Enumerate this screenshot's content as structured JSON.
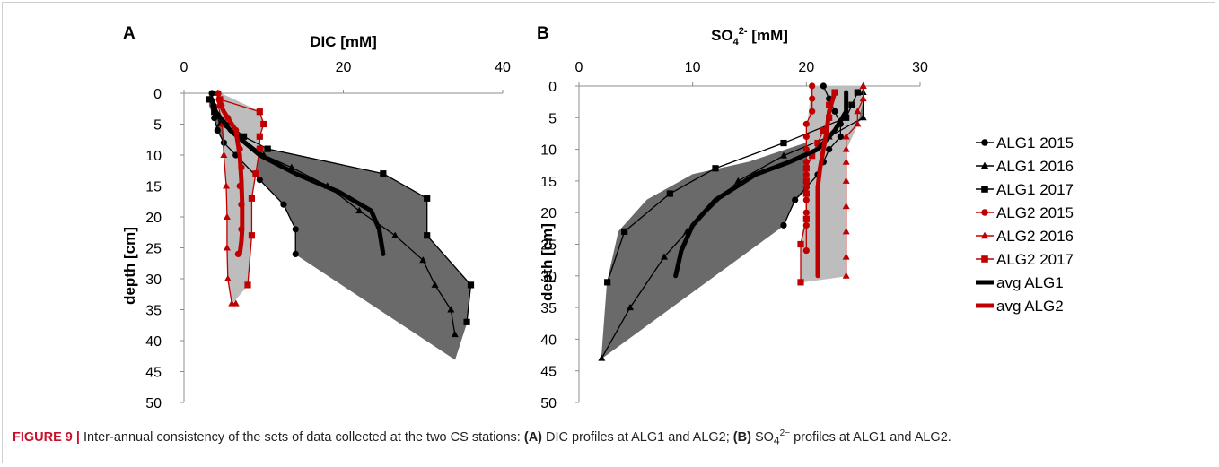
{
  "caption": {
    "figure_label": "FIGURE 9 |",
    "text_1": " Inter-annual consistency of the sets of data collected at the two CS stations: ",
    "label_a": "(A)",
    "text_2": " DIC profiles at ALG1 and ALG2; ",
    "label_b": "(B)",
    "text_3_pre": " SO",
    "text_3_sub": "4",
    "text_3_sup": "2−",
    "text_3_post": " profiles at ALG1 and ALG2."
  },
  "chart_data": [
    {
      "panel": "A",
      "type": "line",
      "title": "DIC [mM]",
      "xlabel": "DIC [mM]",
      "ylabel": "depth [cm]",
      "xlim": [
        0,
        40
      ],
      "ylim": [
        0,
        50
      ],
      "y_inverted": true,
      "x_axis_position": "top",
      "x_ticks": [
        0,
        20,
        40
      ],
      "y_ticks": [
        0,
        5,
        10,
        15,
        20,
        25,
        30,
        35,
        40,
        45,
        50
      ],
      "grid": false,
      "series": [
        {
          "name": "ALG1 2015",
          "color": "#000000",
          "marker": "circle",
          "x": [
            3.5,
            3.7,
            3.8,
            4.2,
            5.0,
            6.5,
            9.5,
            12.5,
            14.0,
            14.0
          ],
          "y": [
            0,
            2,
            4,
            6,
            8,
            10,
            14,
            18,
            22,
            26
          ]
        },
        {
          "name": "ALG1 2016",
          "color": "#000000",
          "marker": "triangle",
          "x": [
            3.5,
            4.0,
            4.5,
            7.0,
            10.0,
            13.5,
            18.0,
            22.0,
            26.5,
            30.0,
            31.5,
            33.5,
            34.0
          ],
          "y": [
            1,
            3,
            5,
            7,
            10,
            12,
            15,
            19,
            23,
            27,
            31,
            35,
            39
          ]
        },
        {
          "name": "ALG1 2017",
          "color": "#000000",
          "marker": "square",
          "x": [
            3.2,
            3.8,
            7.5,
            10.5,
            25.0,
            30.5,
            30.5,
            36.0,
            35.5
          ],
          "y": [
            1,
            3,
            7,
            9,
            13,
            17,
            23,
            31,
            37
          ]
        },
        {
          "name": "ALG2 2015",
          "color": "#c00000",
          "marker": "circle",
          "x": [
            4.3,
            4.4,
            4.7,
            5.5,
            6.5,
            7.0,
            7.2,
            7.0,
            7.2,
            7.2,
            6.8
          ],
          "y": [
            0,
            1,
            2,
            4,
            6,
            9,
            12,
            15,
            18,
            22,
            26
          ]
        },
        {
          "name": "ALG2 2016",
          "color": "#c00000",
          "marker": "triangle",
          "x": [
            4.2,
            4.3,
            4.8,
            5.0,
            5.3,
            5.4,
            5.4,
            5.5,
            6.0,
            6.5
          ],
          "y": [
            0,
            2,
            5,
            10,
            15,
            20,
            25,
            30,
            34,
            34
          ]
        },
        {
          "name": "ALG2 2017",
          "color": "#c00000",
          "marker": "square",
          "x": [
            4.5,
            9.5,
            10.0,
            9.5,
            9.5,
            9.0,
            8.5,
            8.5,
            8.0
          ],
          "y": [
            1,
            3,
            5,
            7,
            9,
            13,
            17,
            23,
            31
          ]
        },
        {
          "name": "avg ALG1",
          "color": "#000000",
          "marker": "none",
          "thick": true,
          "x": [
            3.5,
            4.0,
            5.8,
            9.5,
            14.0,
            19.5,
            23.5,
            24.5,
            25.0
          ],
          "y": [
            1,
            3,
            6,
            10,
            13,
            16,
            19,
            22,
            26
          ]
        },
        {
          "name": "avg ALG2",
          "color": "#c00000",
          "marker": "none",
          "thick": true,
          "x": [
            4.3,
            5.0,
            6.5,
            7.0,
            7.2,
            7.3,
            7.3,
            7.2,
            7.0
          ],
          "y": [
            1,
            3,
            6,
            10,
            14,
            18,
            22,
            24,
            26
          ]
        }
      ],
      "bands": [
        {
          "series": "ALG1",
          "fill": "#6a6a6a",
          "left_x": [
            3.2,
            3.2,
            3.8,
            4.2,
            5.0,
            6.5,
            9.5,
            12.5,
            14.0,
            14.0,
            34.0
          ],
          "left_y": [
            0,
            2,
            4,
            6,
            8,
            10,
            14,
            18,
            22,
            26,
            43
          ],
          "right_x": [
            3.5,
            4.0,
            7.5,
            10.5,
            25.0,
            30.5,
            30.5,
            36.0,
            35.5,
            34.0
          ],
          "right_y": [
            0,
            3,
            7,
            9,
            13,
            17,
            23,
            31,
            37,
            43
          ]
        },
        {
          "series": "ALG2",
          "fill": "#bdbdbd",
          "left_x": [
            4.2,
            4.3,
            4.8,
            5.0,
            5.3,
            5.4,
            5.4,
            5.5,
            6.0
          ],
          "left_y": [
            0,
            2,
            5,
            10,
            15,
            20,
            25,
            30,
            34
          ],
          "right_x": [
            4.5,
            9.5,
            10.0,
            9.5,
            9.5,
            9.0,
            8.5,
            8.5,
            8.0,
            6.0
          ],
          "right_y": [
            0,
            3,
            5,
            7,
            9,
            13,
            17,
            23,
            31,
            34
          ]
        }
      ]
    },
    {
      "panel": "B",
      "type": "line",
      "title": "SO₄²⁻ [mM]",
      "title_parts": {
        "base": "SO",
        "sub": "4",
        "sup": "2-",
        "rest": " [mM]"
      },
      "xlabel": "SO4 2- [mM]",
      "ylabel": "depth [cm]",
      "xlim": [
        0,
        30
      ],
      "ylim": [
        0,
        50
      ],
      "y_inverted": true,
      "x_axis_position": "top",
      "x_ticks": [
        0,
        10,
        20,
        30
      ],
      "y_ticks": [
        0,
        5,
        10,
        15,
        20,
        25,
        30,
        35,
        40,
        45,
        50
      ],
      "grid": false,
      "series": [
        {
          "name": "ALG1 2015",
          "color": "#000000",
          "marker": "circle",
          "x": [
            21.5,
            22.0,
            22.5,
            23.0,
            23.0,
            22.0,
            21.5,
            21.0,
            20.0,
            19.0,
            18.0
          ],
          "y": [
            0,
            2,
            4,
            6,
            8,
            10,
            12,
            14,
            16,
            18,
            22
          ]
        },
        {
          "name": "ALG1 2016",
          "color": "#000000",
          "marker": "triangle",
          "x": [
            25.0,
            25.0,
            25.0,
            22.0,
            18.0,
            14.0,
            9.5,
            7.5,
            4.5,
            2.0
          ],
          "y": [
            0,
            1,
            5,
            8,
            11,
            15,
            23,
            27,
            35,
            43
          ]
        },
        {
          "name": "ALG1 2017",
          "color": "#000000",
          "marker": "square",
          "x": [
            24.5,
            24.0,
            23.5,
            18.0,
            12.0,
            8.0,
            4.0,
            2.5
          ],
          "y": [
            1,
            3,
            5,
            9,
            13,
            17,
            23,
            31
          ]
        },
        {
          "name": "ALG2 2015",
          "color": "#c00000",
          "marker": "circle",
          "x": [
            20.5,
            20.5,
            20.5,
            20.0,
            20.0,
            20.0,
            20.0,
            20.0,
            20.0,
            20.0,
            20.0,
            20.0,
            20.0
          ],
          "y": [
            0,
            2,
            4,
            6,
            8,
            10,
            12,
            14,
            16,
            18,
            20,
            22,
            26
          ]
        },
        {
          "name": "ALG2 2016",
          "color": "#c00000",
          "marker": "triangle",
          "x": [
            25.0,
            25.0,
            24.5,
            24.5,
            23.5,
            23.5,
            23.5,
            23.5,
            23.5,
            23.5,
            23.5,
            23.5
          ],
          "y": [
            0,
            2,
            4,
            6,
            8,
            10,
            12,
            15,
            19,
            23,
            27,
            30
          ]
        },
        {
          "name": "ALG2 2017",
          "color": "#c00000",
          "marker": "square",
          "x": [
            22.5,
            22.0,
            22.0,
            21.5,
            21.0,
            20.5,
            20.0,
            20.0,
            20.0,
            20.0,
            19.5,
            19.5
          ],
          "y": [
            1,
            3,
            5,
            7,
            9,
            11,
            13,
            15,
            17,
            21,
            25,
            31
          ]
        },
        {
          "name": "avg ALG1",
          "color": "#000000",
          "marker": "none",
          "thick": true,
          "x": [
            23.5,
            23.5,
            22.5,
            21.0,
            18.5,
            15.5,
            12.0,
            10.0,
            9.0,
            8.5
          ],
          "y": [
            1,
            4,
            7,
            10,
            12,
            14,
            18,
            22,
            26,
            30
          ]
        },
        {
          "name": "avg ALG2",
          "color": "#c00000",
          "marker": "none",
          "thick": true,
          "x": [
            22.5,
            22.0,
            21.8,
            21.5,
            21.2,
            21.0,
            21.0,
            21.0,
            21.0,
            21.0
          ],
          "y": [
            1,
            4,
            7,
            10,
            13,
            16,
            19,
            22,
            26,
            30
          ]
        }
      ],
      "bands": [
        {
          "series": "ALG1",
          "fill": "#6a6a6a",
          "left_x": [
            23.0,
            20.0,
            15.0,
            10.0,
            6.0,
            3.5,
            2.5,
            2.0
          ],
          "left_y": [
            0,
            9,
            12,
            14,
            18,
            23,
            31,
            43
          ],
          "right_x": [
            25.0,
            25.0,
            23.0,
            23.0,
            21.5,
            19.0,
            18.0,
            2.0
          ],
          "right_y": [
            0,
            5,
            8,
            10,
            14,
            18,
            22,
            43
          ]
        },
        {
          "series": "ALG2",
          "fill": "#bdbdbd",
          "left_x": [
            20.5,
            20.0,
            20.0,
            19.5,
            19.5
          ],
          "left_y": [
            0,
            8,
            20,
            25,
            31
          ],
          "right_x": [
            25.0,
            25.0,
            24.5,
            23.5,
            23.5,
            23.5,
            19.5
          ],
          "right_y": [
            0,
            2,
            6,
            10,
            20,
            30,
            31
          ]
        }
      ]
    }
  ],
  "legend": [
    {
      "label": "ALG1 2015",
      "color": "#000000",
      "marker": "circle"
    },
    {
      "label": "ALG1 2016",
      "color": "#000000",
      "marker": "triangle"
    },
    {
      "label": "ALG1 2017",
      "color": "#000000",
      "marker": "square"
    },
    {
      "label": "ALG2 2015",
      "color": "#c00000",
      "marker": "circle"
    },
    {
      "label": "ALG2 2016",
      "color": "#c00000",
      "marker": "triangle"
    },
    {
      "label": "ALG2 2017",
      "color": "#c00000",
      "marker": "square"
    },
    {
      "label": "avg ALG1",
      "color": "#000000",
      "marker": "none",
      "thick": true
    },
    {
      "label": "avg ALG2",
      "color": "#c00000",
      "marker": "none",
      "thick": true
    }
  ]
}
